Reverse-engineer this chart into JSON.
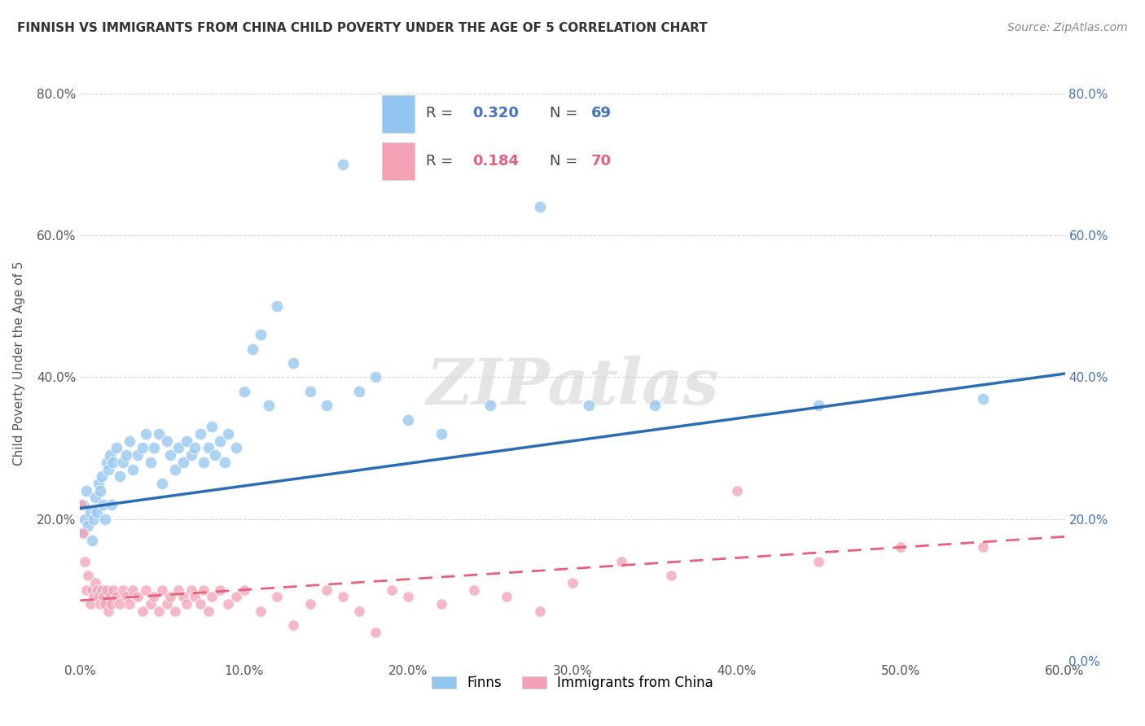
{
  "title": "FINNISH VS IMMIGRANTS FROM CHINA CHILD POVERTY UNDER THE AGE OF 5 CORRELATION CHART",
  "source": "Source: ZipAtlas.com",
  "ylabel": "Child Poverty Under the Age of 5",
  "xlim": [
    0.0,
    0.6
  ],
  "ylim": [
    0.0,
    0.84
  ],
  "xticks": [
    0.0,
    0.1,
    0.2,
    0.3,
    0.4,
    0.5,
    0.6
  ],
  "yticks": [
    0.0,
    0.2,
    0.4,
    0.6,
    0.8
  ],
  "legend_r_finns": "0.320",
  "legend_n_finns": "69",
  "legend_r_china": "0.184",
  "legend_n_china": "70",
  "finns_color": "#92C5F0",
  "china_color": "#F4A0B5",
  "finns_line_color": "#2B6DB5",
  "china_line_color": "#E8607A",
  "watermark": "ZIPatlas",
  "finns_x": [
    0.001,
    0.002,
    0.003,
    0.004,
    0.005,
    0.006,
    0.007,
    0.008,
    0.009,
    0.01,
    0.011,
    0.012,
    0.013,
    0.014,
    0.015,
    0.016,
    0.017,
    0.018,
    0.019,
    0.02,
    0.022,
    0.024,
    0.026,
    0.028,
    0.03,
    0.032,
    0.035,
    0.038,
    0.04,
    0.043,
    0.045,
    0.048,
    0.05,
    0.053,
    0.055,
    0.058,
    0.06,
    0.063,
    0.065,
    0.068,
    0.07,
    0.073,
    0.075,
    0.078,
    0.08,
    0.082,
    0.085,
    0.088,
    0.09,
    0.095,
    0.1,
    0.105,
    0.11,
    0.115,
    0.12,
    0.13,
    0.14,
    0.15,
    0.16,
    0.17,
    0.18,
    0.2,
    0.22,
    0.25,
    0.28,
    0.31,
    0.35,
    0.45,
    0.55
  ],
  "finns_y": [
    0.18,
    0.22,
    0.2,
    0.24,
    0.19,
    0.21,
    0.17,
    0.2,
    0.23,
    0.21,
    0.25,
    0.24,
    0.26,
    0.22,
    0.2,
    0.28,
    0.27,
    0.29,
    0.22,
    0.28,
    0.3,
    0.26,
    0.28,
    0.29,
    0.31,
    0.27,
    0.29,
    0.3,
    0.32,
    0.28,
    0.3,
    0.32,
    0.25,
    0.31,
    0.29,
    0.27,
    0.3,
    0.28,
    0.31,
    0.29,
    0.3,
    0.32,
    0.28,
    0.3,
    0.33,
    0.29,
    0.31,
    0.28,
    0.32,
    0.3,
    0.38,
    0.44,
    0.46,
    0.36,
    0.5,
    0.42,
    0.38,
    0.36,
    0.7,
    0.38,
    0.4,
    0.34,
    0.32,
    0.36,
    0.64,
    0.36,
    0.36,
    0.36,
    0.37
  ],
  "china_x": [
    0.001,
    0.002,
    0.003,
    0.004,
    0.005,
    0.006,
    0.007,
    0.008,
    0.009,
    0.01,
    0.011,
    0.012,
    0.013,
    0.014,
    0.015,
    0.016,
    0.017,
    0.018,
    0.019,
    0.02,
    0.022,
    0.024,
    0.026,
    0.028,
    0.03,
    0.032,
    0.035,
    0.038,
    0.04,
    0.043,
    0.045,
    0.048,
    0.05,
    0.053,
    0.055,
    0.058,
    0.06,
    0.063,
    0.065,
    0.068,
    0.07,
    0.073,
    0.075,
    0.078,
    0.08,
    0.085,
    0.09,
    0.095,
    0.1,
    0.11,
    0.12,
    0.13,
    0.14,
    0.15,
    0.16,
    0.17,
    0.18,
    0.19,
    0.2,
    0.22,
    0.24,
    0.26,
    0.28,
    0.3,
    0.33,
    0.36,
    0.4,
    0.45,
    0.5,
    0.55
  ],
  "china_y": [
    0.22,
    0.18,
    0.14,
    0.1,
    0.12,
    0.08,
    0.1,
    0.09,
    0.11,
    0.1,
    0.09,
    0.08,
    0.1,
    0.09,
    0.08,
    0.1,
    0.07,
    0.09,
    0.08,
    0.1,
    0.09,
    0.08,
    0.1,
    0.09,
    0.08,
    0.1,
    0.09,
    0.07,
    0.1,
    0.08,
    0.09,
    0.07,
    0.1,
    0.08,
    0.09,
    0.07,
    0.1,
    0.09,
    0.08,
    0.1,
    0.09,
    0.08,
    0.1,
    0.07,
    0.09,
    0.1,
    0.08,
    0.09,
    0.1,
    0.07,
    0.09,
    0.05,
    0.08,
    0.1,
    0.09,
    0.07,
    0.04,
    0.1,
    0.09,
    0.08,
    0.1,
    0.09,
    0.07,
    0.11,
    0.14,
    0.12,
    0.24,
    0.14,
    0.16,
    0.16
  ],
  "background_color": "#FFFFFF",
  "grid_color": "#CCCCCC",
  "finns_trendline_x": [
    0.0,
    0.6
  ],
  "finns_trendline_y": [
    0.215,
    0.405
  ],
  "china_trendline_x": [
    0.0,
    0.6
  ],
  "china_trendline_y": [
    0.085,
    0.175
  ]
}
